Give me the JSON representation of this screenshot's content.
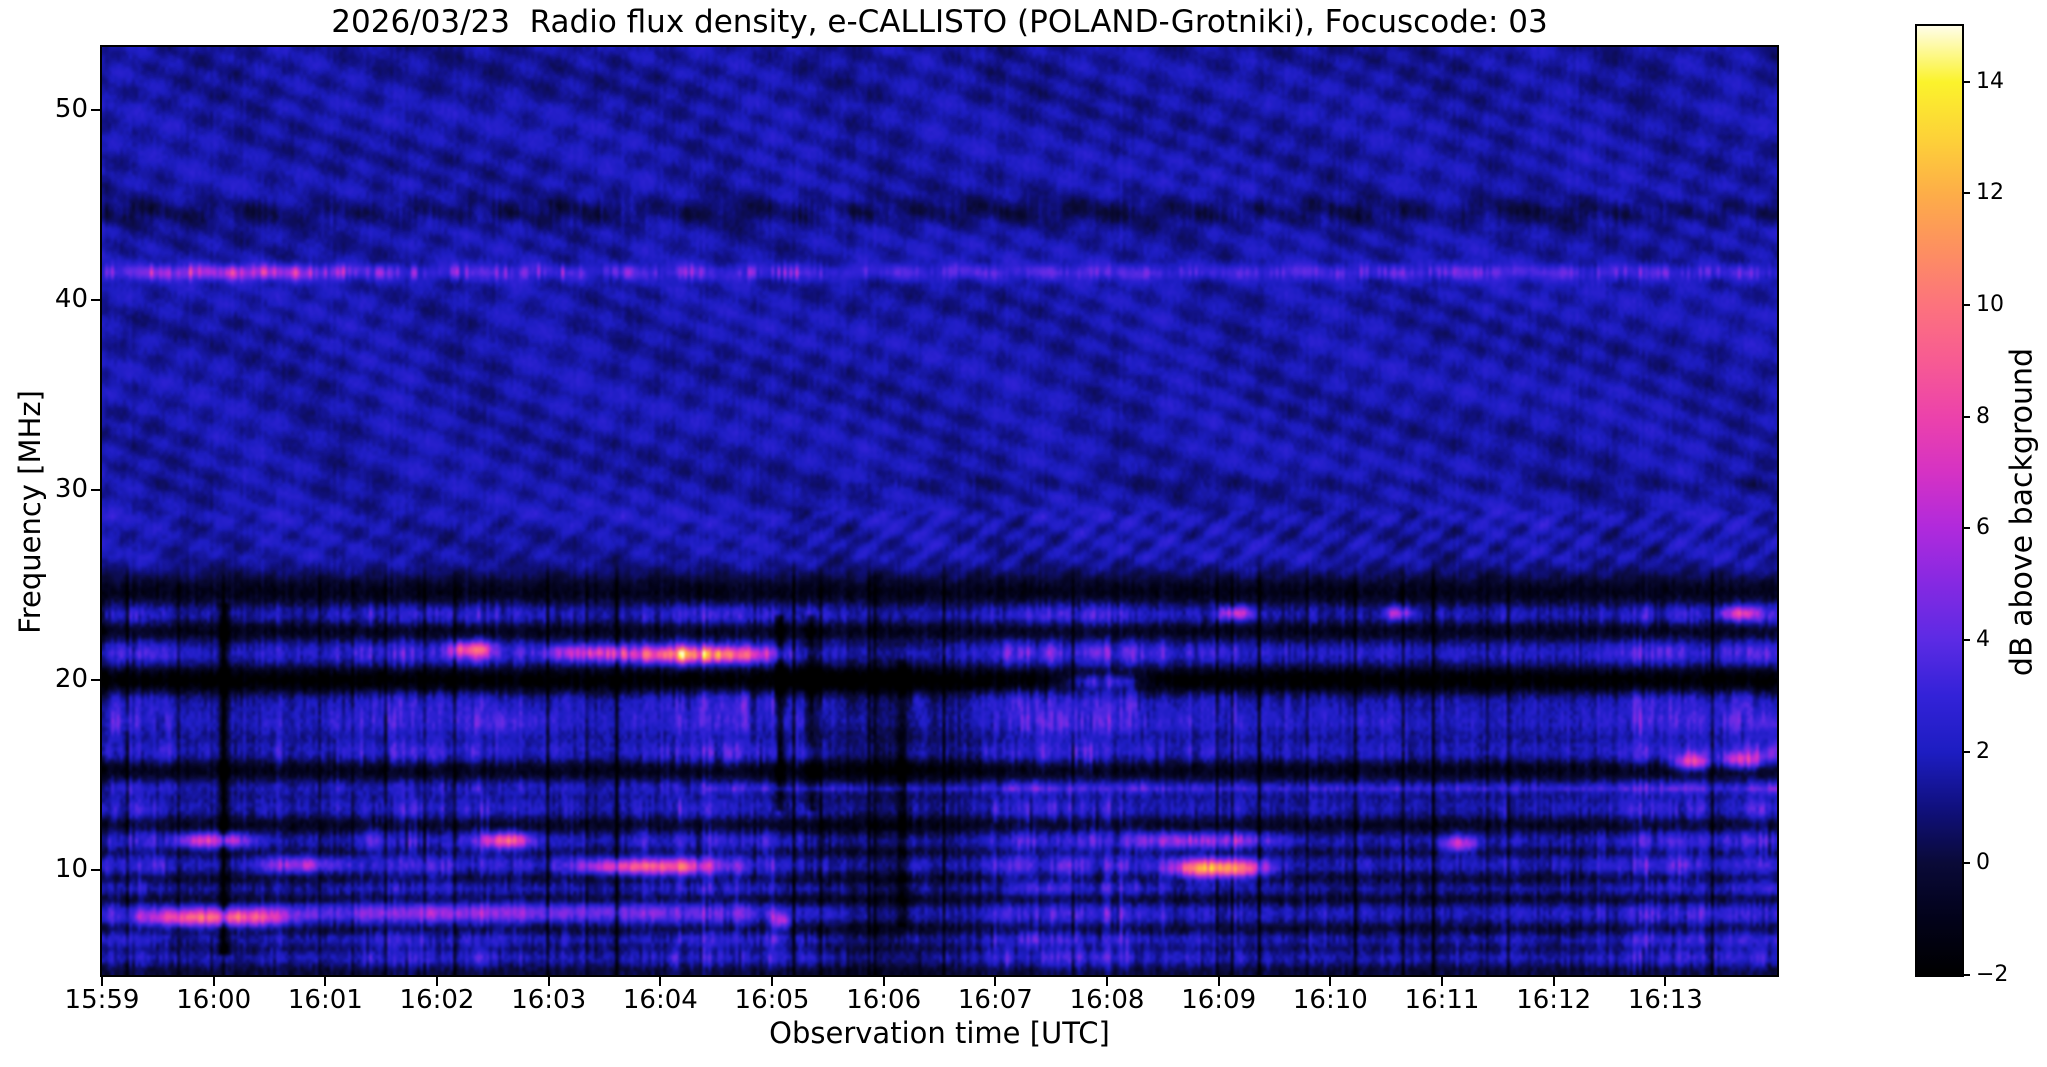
{
  "chart_data": {
    "type": "heatmap",
    "subtype": "radio-spectrogram",
    "title": "2026/03/23  Radio flux density, e-CALLISTO (POLAND-Grotniki), Focuscode: 03",
    "date": "2026/03/23",
    "station": "POLAND-Grotniki",
    "focuscode": "03",
    "xlabel": "Observation time [UTC]",
    "ylabel": "Frequency [MHz]",
    "colorbar_label": "dB above background",
    "x_start": "15:59:00",
    "x_end": "16:14:00",
    "x_span_minutes": 15,
    "x_ticks": [
      {
        "label": "15:59",
        "minute": 0
      },
      {
        "label": "16:00",
        "minute": 1
      },
      {
        "label": "16:01",
        "minute": 2
      },
      {
        "label": "16:02",
        "minute": 3
      },
      {
        "label": "16:03",
        "minute": 4
      },
      {
        "label": "16:04",
        "minute": 5
      },
      {
        "label": "16:05",
        "minute": 6
      },
      {
        "label": "16:06",
        "minute": 7
      },
      {
        "label": "16:07",
        "minute": 8
      },
      {
        "label": "16:08",
        "minute": 9
      },
      {
        "label": "16:09",
        "minute": 10
      },
      {
        "label": "16:10",
        "minute": 11
      },
      {
        "label": "16:11",
        "minute": 12
      },
      {
        "label": "16:12",
        "minute": 13
      },
      {
        "label": "16:13",
        "minute": 14
      }
    ],
    "y_range_mhz": [
      4.5,
      53.3
    ],
    "y_ticks": [
      {
        "label": "50",
        "value": 50
      },
      {
        "label": "40",
        "value": 40
      },
      {
        "label": "30",
        "value": 30
      },
      {
        "label": "20",
        "value": 20
      },
      {
        "label": "10",
        "value": 10
      }
    ],
    "color_scale": {
      "min_db": -2,
      "max_db": 15,
      "ticks": [
        {
          "label": "14",
          "value": 14
        },
        {
          "label": "12",
          "value": 12
        },
        {
          "label": "10",
          "value": 10
        },
        {
          "label": "8",
          "value": 8
        },
        {
          "label": "6",
          "value": 6
        },
        {
          "label": "4",
          "value": 4
        },
        {
          "label": "2",
          "value": 2
        },
        {
          "label": "0",
          "value": 0
        },
        {
          "label": "−2",
          "value": -2
        }
      ],
      "stops": [
        {
          "value": -2,
          "color": "#000000"
        },
        {
          "value": -1,
          "color": "#02021a"
        },
        {
          "value": 0,
          "color": "#0a0a38"
        },
        {
          "value": 1,
          "color": "#10107e"
        },
        {
          "value": 2,
          "color": "#1d1dc2"
        },
        {
          "value": 3,
          "color": "#3322d8"
        },
        {
          "value": 4,
          "color": "#5c2be4"
        },
        {
          "value": 5,
          "color": "#8529e2"
        },
        {
          "value": 6,
          "color": "#b02adc"
        },
        {
          "value": 7,
          "color": "#d532c4"
        },
        {
          "value": 8,
          "color": "#ec42ab"
        },
        {
          "value": 9,
          "color": "#f75b93"
        },
        {
          "value": 10,
          "color": "#fc737d"
        },
        {
          "value": 11,
          "color": "#fd9060"
        },
        {
          "value": 12,
          "color": "#fdae48"
        },
        {
          "value": 13,
          "color": "#fdd238"
        },
        {
          "value": 14,
          "color": "#fbf32c"
        },
        {
          "value": 15,
          "color": "#fffde8"
        }
      ]
    },
    "background": {
      "upper_region_mean_db": 1.6,
      "upper_region_above_mhz": 26,
      "description": "blue background with diagonal interference ripple moire above ~26 MHz; dense horizontal RFI banding with vertical scintillation stripes below ~25 MHz",
      "dark_horizontal_line_mhz": 44.7,
      "bright_blip_line_mhz": 41.5,
      "thin_bright_line_mhz": 14.25
    },
    "rfi_bright_bands_mhz": [
      {
        "freq": 23.4,
        "width": 0.45,
        "strength": 1.9
      },
      {
        "freq": 21.4,
        "width": 0.5,
        "strength": 2.2
      },
      {
        "freq": 18.9,
        "width": 0.55,
        "strength": 1.7
      },
      {
        "freq": 17.7,
        "width": 0.5,
        "strength": 1.9
      },
      {
        "freq": 16.1,
        "width": 0.55,
        "strength": 2.0
      },
      {
        "freq": 14.3,
        "width": 0.3,
        "strength": 1.5
      },
      {
        "freq": 13.1,
        "width": 0.5,
        "strength": 1.8
      },
      {
        "freq": 11.5,
        "width": 0.5,
        "strength": 2.0
      },
      {
        "freq": 10.1,
        "width": 0.5,
        "strength": 2.0
      },
      {
        "freq": 9.0,
        "width": 0.35,
        "strength": 1.5
      },
      {
        "freq": 7.6,
        "width": 0.5,
        "strength": 1.9
      },
      {
        "freq": 6.3,
        "width": 0.4,
        "strength": 1.8
      },
      {
        "freq": 5.3,
        "width": 0.5,
        "strength": 1.9
      }
    ],
    "rfi_dark_bands_mhz": [
      {
        "freq": 24.9,
        "width": 0.7,
        "strength": 1.6
      },
      {
        "freq": 22.6,
        "width": 0.4,
        "strength": 1.5
      },
      {
        "freq": 19.9,
        "width": 0.5,
        "strength": 2.6
      },
      {
        "freq": 15.3,
        "width": 0.4,
        "strength": 1.7
      },
      {
        "freq": 12.3,
        "width": 0.4,
        "strength": 1.7
      },
      {
        "freq": 10.9,
        "width": 0.25,
        "strength": 1.2
      },
      {
        "freq": 9.5,
        "width": 0.3,
        "strength": 1.5
      },
      {
        "freq": 8.4,
        "width": 0.25,
        "strength": 1.2
      },
      {
        "freq": 6.8,
        "width": 0.3,
        "strength": 1.5
      },
      {
        "freq": 5.8,
        "width": 0.25,
        "strength": 1.2
      },
      {
        "freq": 4.7,
        "width": 0.3,
        "strength": 1.0
      }
    ],
    "data_gaps": [
      {
        "time": "16:00:05",
        "fmin": 5.5,
        "fmax": 24.0,
        "depth": 2.8
      },
      {
        "time": "16:05:04",
        "fmin": 13.0,
        "fmax": 23.5,
        "depth": 2.4
      },
      {
        "time": "16:05:21",
        "fmin": 13.0,
        "fmax": 23.5,
        "depth": 2.2
      },
      {
        "time": "16:06:10",
        "fmin": 7.0,
        "fmax": 21.0,
        "depth": 1.6
      }
    ],
    "features": [
      {
        "start": "15:59:20",
        "end": "16:00:40",
        "freq_mhz": 7.4,
        "peak_db": 10,
        "fw": 0.35,
        "comb": false
      },
      {
        "start": "16:00:30",
        "end": "16:04:45",
        "freq_mhz": 7.7,
        "peak_db": 4.5,
        "fw": 0.4,
        "comb": false
      },
      {
        "start": "16:03:40",
        "end": "16:05:00",
        "freq_mhz": 21.3,
        "peak_db": 13,
        "fw": 0.3,
        "comb": true
      },
      {
        "start": "16:02:55",
        "end": "16:03:45",
        "freq_mhz": 21.4,
        "peak_db": 8,
        "fw": 0.3,
        "comb": true
      },
      {
        "start": "16:02:05",
        "end": "16:02:30",
        "freq_mhz": 21.6,
        "peak_db": 8,
        "fw": 0.3,
        "comb": false
      },
      {
        "start": "16:03:15",
        "end": "16:04:30",
        "freq_mhz": 10.1,
        "peak_db": 9,
        "fw": 0.3,
        "comb": false
      },
      {
        "start": "16:07:35",
        "end": "16:08:20",
        "freq_mhz": 19.9,
        "peak_db": 8,
        "fw": 0.28,
        "comb": true
      },
      {
        "start": "16:08:35",
        "end": "16:09:25",
        "freq_mhz": 10.0,
        "peak_db": 13,
        "fw": 0.35,
        "comb": false
      },
      {
        "start": "16:13:05",
        "end": "16:13:25",
        "freq_mhz": 15.6,
        "peak_db": 9,
        "fw": 0.3,
        "comb": false
      },
      {
        "start": "16:13:30",
        "end": "16:13:55",
        "freq_mhz": 15.7,
        "peak_db": 8.5,
        "fw": 0.3,
        "comb": true
      },
      {
        "start": "16:11:00",
        "end": "16:11:20",
        "freq_mhz": 11.3,
        "peak_db": 7,
        "fw": 0.3,
        "comb": false
      },
      {
        "start": "15:59:25",
        "end": "16:01:10",
        "freq_mhz": 41.5,
        "peak_db": 5,
        "fw": 0.25,
        "comb": true
      },
      {
        "start": "16:08:20",
        "end": "16:09:30",
        "freq_mhz": 11.5,
        "peak_db": 7,
        "fw": 0.3,
        "comb": true
      },
      {
        "start": "16:00:25",
        "end": "16:01:10",
        "freq_mhz": 10.2,
        "peak_db": 7,
        "fw": 0.3,
        "comb": true
      },
      {
        "start": "16:02:25",
        "end": "16:02:50",
        "freq_mhz": 11.5,
        "peak_db": 9,
        "fw": 0.3,
        "comb": false
      },
      {
        "start": "15:59:40",
        "end": "16:00:20",
        "freq_mhz": 11.5,
        "peak_db": 8,
        "fw": 0.3,
        "comb": false
      },
      {
        "start": "16:05:00",
        "end": "16:05:10",
        "freq_mhz": 7.2,
        "peak_db": 7,
        "fw": 0.3,
        "comb": false
      },
      {
        "start": "16:09:00",
        "end": "16:09:20",
        "freq_mhz": 23.5,
        "peak_db": 7,
        "fw": 0.25,
        "comb": false
      },
      {
        "start": "16:10:30",
        "end": "16:10:45",
        "freq_mhz": 23.5,
        "peak_db": 6.5,
        "fw": 0.25,
        "comb": false
      },
      {
        "start": "16:13:30",
        "end": "16:13:50",
        "freq_mhz": 23.5,
        "peak_db": 7,
        "fw": 0.25,
        "comb": false
      }
    ]
  }
}
